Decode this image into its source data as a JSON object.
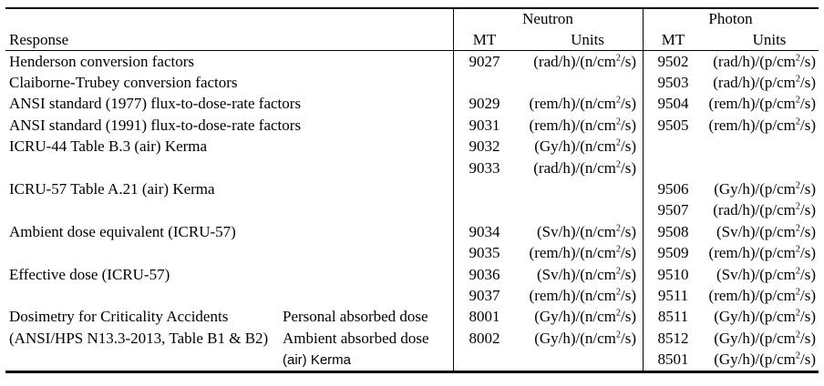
{
  "table": {
    "headers": {
      "response": "Response",
      "neutron_group": "Neutron",
      "photon_group": "Photon",
      "neutron_mt": "MT",
      "neutron_units": "Units",
      "photon_mt": "MT",
      "photon_units": "Units"
    },
    "rows": [
      {
        "response": "Henderson conversion factors",
        "response_sub": "",
        "n_mt": "9027",
        "n_units": "(rad/h)/(n/cm^2/s)",
        "p_mt": "9502",
        "p_units": "(rad/h)/(p/cm^2/s)"
      },
      {
        "response": "Claiborne-Trubey conversion factors",
        "response_sub": "",
        "n_mt": "",
        "n_units": "",
        "p_mt": "9503",
        "p_units": "(rad/h)/(p/cm^2/s)"
      },
      {
        "response": "ANSI standard (1977) flux-to-dose-rate factors",
        "response_sub": "",
        "n_mt": "9029",
        "n_units": "(rem/h)/(n/cm^2/s)",
        "p_mt": "9504",
        "p_units": "(rem/h)/(p/cm^2/s)"
      },
      {
        "response": "ANSI standard (1991) flux-to-dose-rate factors",
        "response_sub": "",
        "n_mt": "9031",
        "n_units": "(rem/h)/(n/cm^2/s)",
        "p_mt": "9505",
        "p_units": "(rem/h)/(p/cm^2/s)"
      },
      {
        "response": "ICRU-44 Table B.3 (air) Kerma",
        "response_sub": "",
        "n_mt": "9032",
        "n_units": "(Gy/h)/(n/cm^2/s)",
        "p_mt": "",
        "p_units": ""
      },
      {
        "response": "",
        "response_sub": "",
        "n_mt": "9033",
        "n_units": "(rad/h)/(n/cm^2/s)",
        "p_mt": "",
        "p_units": ""
      },
      {
        "response": "ICRU-57 Table A.21 (air) Kerma",
        "response_sub": "",
        "n_mt": "",
        "n_units": "",
        "p_mt": "9506",
        "p_units": "(Gy/h)/(p/cm^2/s)"
      },
      {
        "response": "",
        "response_sub": "",
        "n_mt": "",
        "n_units": "",
        "p_mt": "9507",
        "p_units": "(rad/h)/(p/cm^2/s)"
      },
      {
        "response": "Ambient dose equivalent (ICRU-57)",
        "response_sub": "",
        "n_mt": "9034",
        "n_units": "(Sv/h)/(n/cm^2/s)",
        "p_mt": "9508",
        "p_units": "(Sv/h)/(p/cm^2/s)"
      },
      {
        "response": "",
        "response_sub": "",
        "n_mt": "9035",
        "n_units": "(rem/h)/(n/cm^2/s)",
        "p_mt": "9509",
        "p_units": "(rem/h)/(p/cm^2/s)"
      },
      {
        "response": "Effective dose (ICRU-57)",
        "response_sub": "",
        "n_mt": "9036",
        "n_units": "(Sv/h)/(n/cm^2/s)",
        "p_mt": "9510",
        "p_units": "(Sv/h)/(p/cm^2/s)"
      },
      {
        "response": "",
        "response_sub": "",
        "n_mt": "9037",
        "n_units": "(rem/h)/(n/cm^2/s)",
        "p_mt": "9511",
        "p_units": "(rem/h)/(p/cm^2/s)"
      },
      {
        "response": "Dosimetry for Criticality Accidents",
        "response_sub": "Personal absorbed dose",
        "n_mt": "8001",
        "n_units": "(Gy/h)/(n/cm^2/s)",
        "p_mt": "8511",
        "p_units": "(Gy/h)/(p/cm^2/s)"
      },
      {
        "response": "(ANSI/HPS N13.3-2013, Table B1 & B2)",
        "response_sub": "Ambient absorbed dose",
        "n_mt": "8002",
        "n_units": "(Gy/h)/(n/cm^2/s)",
        "p_mt": "8512",
        "p_units": "(Gy/h)/(p/cm^2/s)"
      },
      {
        "response": "",
        "response_sub": "(air) Kerma",
        "n_mt": "",
        "n_units": "",
        "p_mt": "8501",
        "p_units": "(Gy/h)/(p/cm^2/s)"
      }
    ]
  }
}
